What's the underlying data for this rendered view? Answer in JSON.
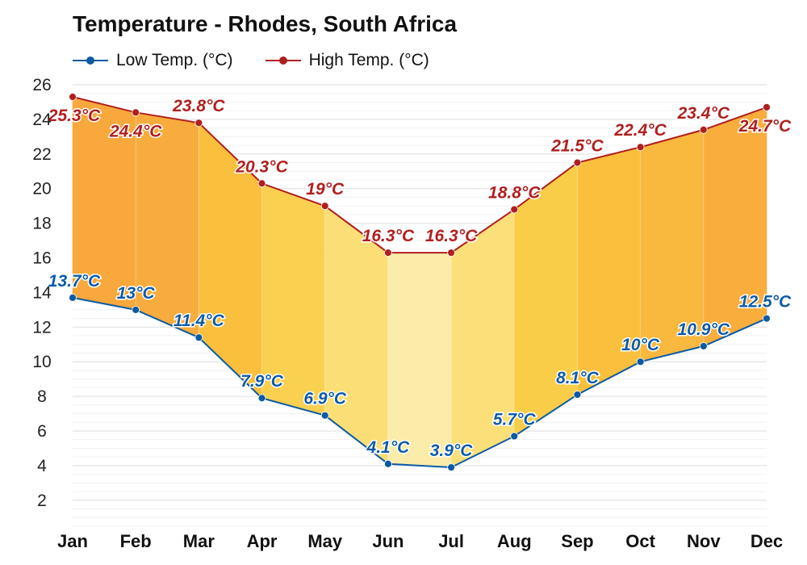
{
  "title": "Temperature - Rhodes, South Africa",
  "colors": {
    "low": "#0b5aa3",
    "high": "#b01f1f",
    "low_label": "#0d5ca8",
    "high_label": "#b01f1f",
    "grid": "#e4e4e4"
  },
  "chart_data": {
    "type": "line",
    "title": "Temperature - Rhodes, South Africa",
    "categories": [
      "Jan",
      "Feb",
      "Mar",
      "Apr",
      "May",
      "Jun",
      "Jul",
      "Aug",
      "Sep",
      "Oct",
      "Nov",
      "Dec"
    ],
    "series": [
      {
        "name": "Low Temp. (°C)",
        "values": [
          13.7,
          13,
          11.4,
          7.9,
          6.9,
          4.1,
          3.9,
          5.7,
          8.1,
          10,
          10.9,
          12.5
        ],
        "labels": [
          "13.7°C",
          "13°C",
          "11.4°C",
          "7.9°C",
          "6.9°C",
          "4.1°C",
          "3.9°C",
          "5.7°C",
          "8.1°C",
          "10°C",
          "10.9°C",
          "12.5°C"
        ]
      },
      {
        "name": "High Temp. (°C)",
        "values": [
          25.3,
          24.4,
          23.8,
          20.3,
          19,
          16.3,
          16.3,
          18.8,
          21.5,
          22.4,
          23.4,
          24.7
        ],
        "labels": [
          "25.3°C",
          "24.4°C",
          "23.8°C",
          "20.3°C",
          "19°C",
          "16.3°C",
          "16.3°C",
          "18.8°C",
          "21.5°C",
          "22.4°C",
          "23.4°C",
          "24.7°C"
        ]
      }
    ],
    "ylim": [
      0,
      26
    ],
    "yticks": [
      2,
      4,
      6,
      8,
      10,
      12,
      14,
      16,
      18,
      20,
      22,
      24,
      26
    ],
    "grid": true,
    "band_fill": "between low and high series, colored by average temperature",
    "legend_position": "top-left",
    "xlabel": "",
    "ylabel": ""
  }
}
